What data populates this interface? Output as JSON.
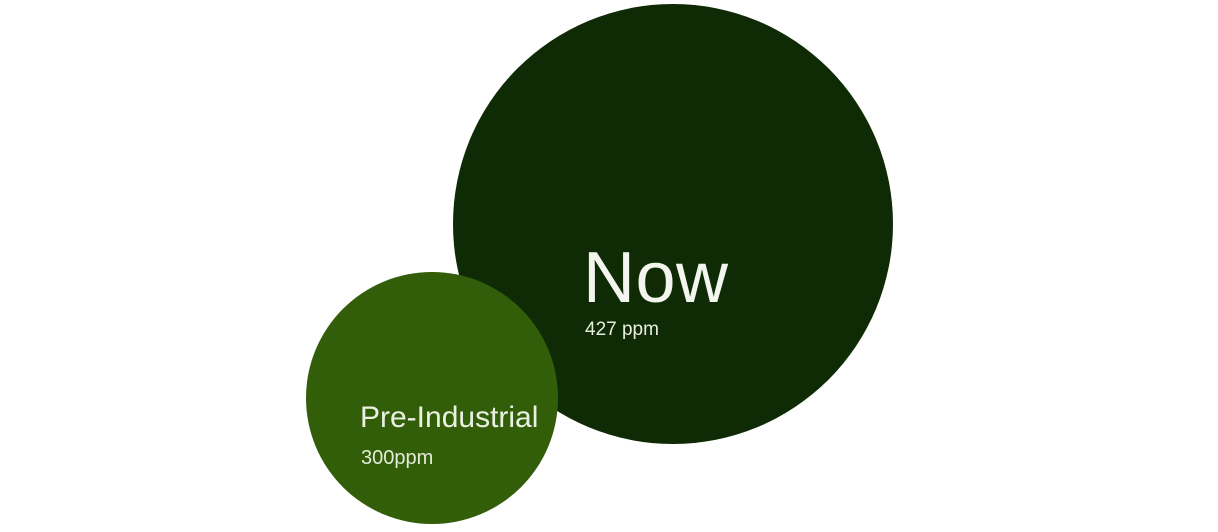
{
  "chart_data": {
    "type": "bubble",
    "title": "",
    "series": [
      {
        "name": "Now",
        "value": 427,
        "unit": "ppm",
        "data_label": "427 ppm",
        "color": "#0e2b06"
      },
      {
        "name": "Pre-Industrial",
        "value": 300,
        "unit": "ppm",
        "data_label": "300ppm",
        "color": "#335e09"
      }
    ],
    "layout_hints": {
      "background": "#ffffff",
      "legend": "none",
      "axes": "none",
      "description": "Two overlapping proportional-area circles; larger dark circle (Now) upper right, smaller lighter circle (Pre-Industrial) lower left drawn on top"
    }
  },
  "circles": {
    "now": {
      "label": "Now",
      "value_label": "427 ppm",
      "fill": "#0e2b06",
      "style": "background-color:#0e2b06",
      "label_color": "#f2f6ee",
      "value_color": "#e7eedd"
    },
    "pre_industrial": {
      "label": "Pre-Industrial",
      "value_label": "300ppm",
      "fill": "#335e09",
      "style": "background-color:#335e09",
      "label_color": "#ebf1e2",
      "value_color": "#e4ebd8"
    }
  }
}
